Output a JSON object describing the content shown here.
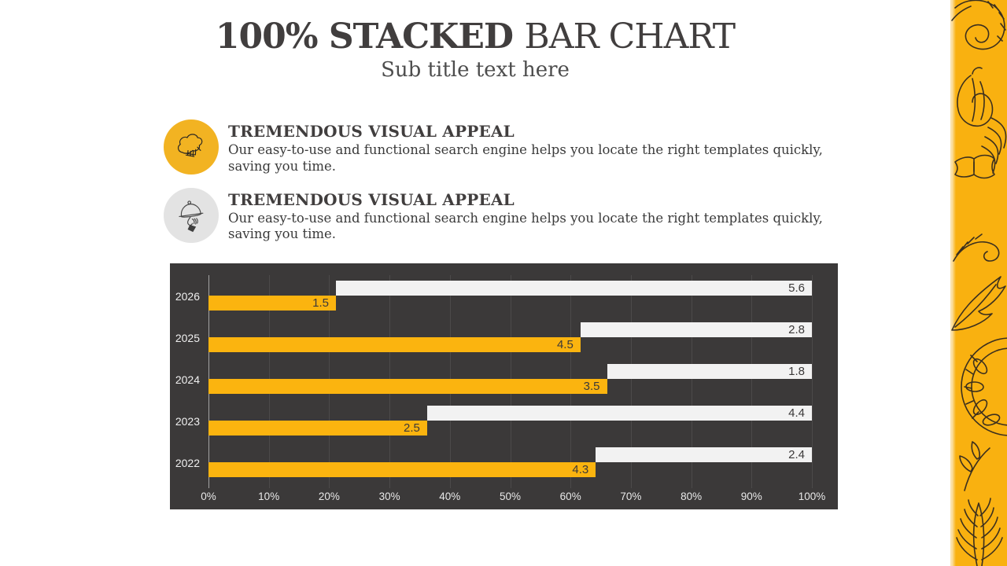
{
  "title": {
    "emphasis": "100% STACKED",
    "rest": "BAR CHART",
    "subtitle": "Sub title text here"
  },
  "features": [
    {
      "icon": "chef-hat-icon",
      "heading": "TREMENDOUS VISUAL APPEAL",
      "body_line1": "Our easy-to-use and functional search engine helps you locate the right templates quickly,",
      "body_line2": "saving you time."
    },
    {
      "icon": "serving-cloche-icon",
      "heading": "TREMENDOUS VISUAL APPEAL",
      "body_line1": "Our easy-to-use and functional search engine helps you locate the right templates quickly,",
      "body_line2": "saving you time."
    }
  ],
  "chart_data": {
    "type": "bar",
    "orientation": "horizontal",
    "subtype": "100% stacked (two series per category; light bar begins where accent share ends)",
    "title": "",
    "xlabel": "",
    "ylabel": "",
    "categories": [
      "2026",
      "2025",
      "2024",
      "2023",
      "2022"
    ],
    "series": [
      {
        "name": "accent-series",
        "color": "#FBB40F",
        "values": [
          1.5,
          4.5,
          3.5,
          2.5,
          4.3
        ]
      },
      {
        "name": "light-series",
        "color": "#F2F2F2",
        "values": [
          5.6,
          2.8,
          1.8,
          4.4,
          2.4
        ]
      }
    ],
    "x_tick_labels": [
      "0%",
      "10%",
      "20%",
      "30%",
      "40%",
      "50%",
      "60%",
      "70%",
      "80%",
      "90%",
      "100%"
    ],
    "x_range": [
      0,
      100
    ],
    "grid": "vertical gridlines every 10%",
    "legend": "none",
    "value_labels": "inside end of each bar",
    "plot_background": "#3B3939"
  },
  "colors": {
    "ink": "#413E3E",
    "chart_bg": "#3B3939",
    "bar_accent": "#FBB40F",
    "bar_light": "#F2F2F2",
    "grid_line": "#4C4A4A",
    "axis_line": "#A3A3A3",
    "tick_text": "#E8E8E8",
    "strip_yellow": "#F9B110",
    "icon_yellow": "#F2B322",
    "icon_gray": "#E3E3E3"
  }
}
